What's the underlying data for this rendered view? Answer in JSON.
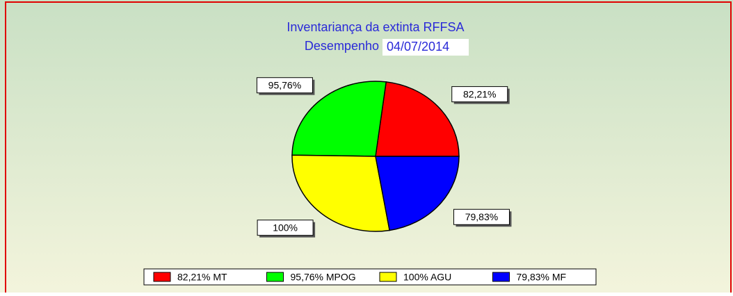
{
  "chart_data": {
    "type": "pie",
    "title": "Inventariança  da extinta RFFSA",
    "subtitle": "Desempenho",
    "date": "04/07/2014",
    "categories": [
      "MT",
      "MPOG",
      "AGU",
      "MF"
    ],
    "values": [
      82.21,
      95.76,
      100,
      79.83
    ],
    "value_labels": [
      "82,21%",
      "95,76%",
      "100%",
      "79,83%"
    ],
    "colors": [
      "#ff0000",
      "#00ff00",
      "#ffff00",
      "#0000ff"
    ],
    "legend": "bottom"
  }
}
